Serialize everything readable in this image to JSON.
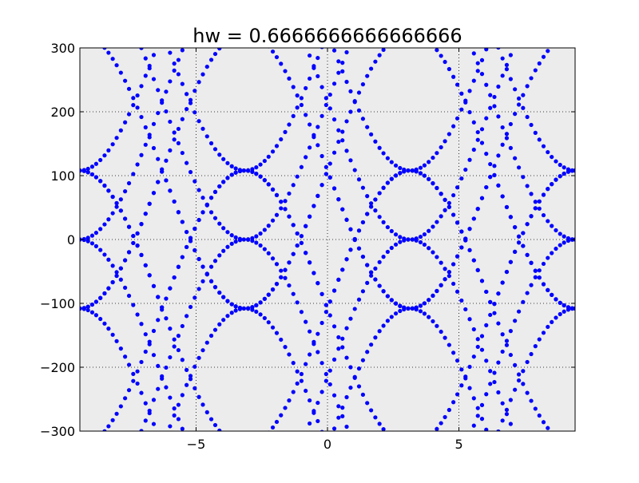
{
  "chart_data": {
    "type": "scatter",
    "title": "hw = 0.6666666666666666",
    "xlabel": "",
    "ylabel": "",
    "xlim": [
      -9.42,
      9.42
    ],
    "ylim": [
      -300,
      300
    ],
    "x_ticks": [
      -5,
      0,
      5
    ],
    "x_tick_labels": [
      "−5",
      "0",
      "5"
    ],
    "y_ticks": [
      300,
      200,
      100,
      0,
      -100,
      -200,
      -300
    ],
    "y_tick_labels": [
      "300",
      "200",
      "100",
      "0",
      "−100",
      "−200",
      "−300"
    ],
    "grid": true,
    "grid_style": "dotted",
    "legend": "none",
    "background_color": "#ececec",
    "marker_color": "#0000ff",
    "series": [
      {
        "x": [
          -9.42,
          -9.26,
          -9.11,
          -8.95,
          -8.8,
          -8.64,
          -8.48,
          -8.33,
          -8.17,
          -8.02,
          -7.86,
          -7.7,
          -7.55,
          -7.39,
          -7.23,
          -7.08,
          -6.92,
          -6.77,
          -6.61,
          -6.45,
          -6.3,
          -6.14,
          -5.99,
          -5.83,
          -5.67,
          -5.52,
          -5.36,
          -5.21,
          -5.05,
          -4.89,
          -4.74,
          -4.58,
          -4.42,
          -4.27,
          -4.11,
          -3.96,
          -3.8,
          -3.64,
          -3.49,
          -3.33,
          -3.18,
          -3.02,
          -2.86,
          -2.71,
          -2.55,
          -2.39,
          -2.24,
          -2.08,
          -1.93,
          -1.77,
          -1.61,
          -1.46,
          -1.3,
          -1.15,
          -0.99,
          -0.83,
          -0.68,
          -0.52,
          -0.37,
          -0.21,
          -0.05,
          0.1,
          0.26,
          0.42,
          0.57,
          0.73,
          0.88,
          1.04,
          1.2,
          1.35,
          1.51,
          1.66,
          1.82,
          1.98,
          2.13,
          2.29,
          2.44,
          2.6,
          2.76,
          2.91,
          3.07,
          3.23,
          3.38,
          3.54,
          3.69,
          3.85,
          4.01,
          4.16,
          4.32,
          4.47,
          4.63,
          4.79,
          4.94,
          5.1,
          5.25,
          5.41,
          5.57,
          5.72,
          5.88,
          6.04,
          6.19,
          6.35,
          6.5,
          6.66,
          6.82,
          6.97,
          7.13,
          7.28,
          7.44,
          7.6,
          7.75,
          7.91,
          8.06,
          8.22,
          8.38,
          8.53,
          8.69,
          8.85,
          9.0,
          9.16,
          9.31,
          9.42
        ],
        "branch_offsets": [
          108,
          -108,
          216,
          -216,
          324,
          -324
        ]
      }
    ]
  }
}
